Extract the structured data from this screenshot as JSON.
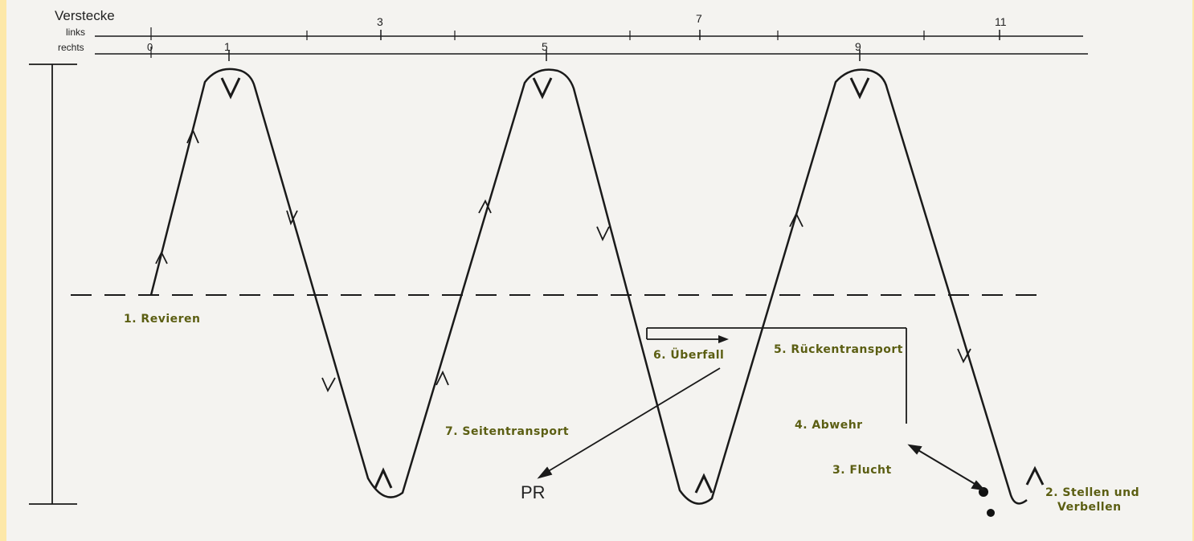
{
  "scale": {
    "title": "Verstecke",
    "row_left_label": "links",
    "row_right_label": "rechts",
    "left_numbers": [
      "3",
      "7",
      "11"
    ],
    "right_numbers": [
      "0",
      "1",
      "5",
      "9"
    ]
  },
  "labels": {
    "revieren": "1. Revieren",
    "stellen_line1": "2. Stellen und",
    "stellen_line2": "Verbellen",
    "flucht": "3. Flucht",
    "abwehr": "4. Abwehr",
    "rueckentransport": "5. Rückentransport",
    "ueberfall": "6. Überfall",
    "seitentransport": "7. Seitentransport",
    "pr": "PR"
  },
  "markers": {
    "top_turn": "V",
    "bottom_turn": "Λ"
  },
  "colors": {
    "label": "#5b5e12",
    "line": "#1a1a1a",
    "frame": "#fde8a8",
    "paper": "#f4f3f0"
  }
}
